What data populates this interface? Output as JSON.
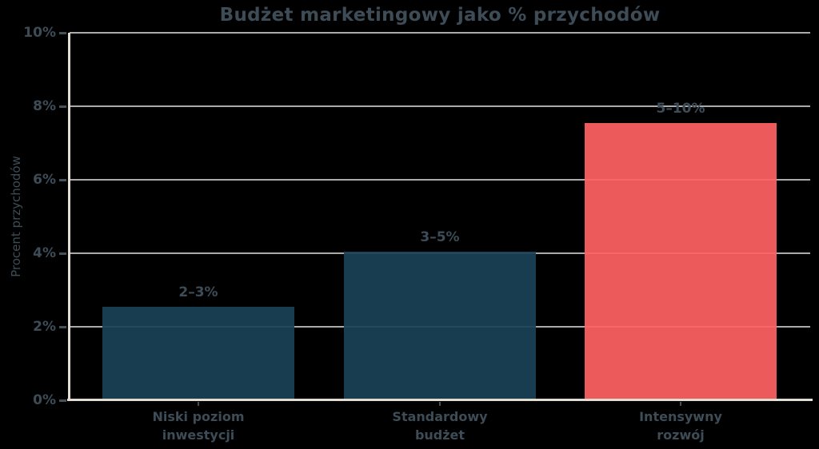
{
  "chart_data": {
    "type": "bar",
    "title": "Budżet marketingowy jako % przychodów",
    "ylabel": "Procent przychodów",
    "xlabel": "",
    "categories": [
      [
        "Niski poziom",
        "inwestycji"
      ],
      [
        "Standardowy",
        "budżet"
      ],
      [
        "Intensywny",
        "rozwój"
      ]
    ],
    "values": [
      2.5,
      4.0,
      7.5
    ],
    "bar_labels": [
      "2–3%",
      "3–5%",
      "5–10%"
    ],
    "bar_colors": [
      "#1a4156",
      "#1a4156",
      "#ff6163"
    ],
    "ytick_labels": [
      "0%",
      "2%",
      "4%",
      "6%",
      "8%",
      "10%"
    ],
    "ytick_values": [
      0,
      2,
      4,
      6,
      8,
      10
    ],
    "ylim": [
      0,
      10
    ],
    "grid": true,
    "legend": false,
    "colors": {
      "background": "#000000",
      "text": "#3d4c56",
      "axis_spine": "#e3dcd2",
      "gridline": "#ababab",
      "bar_standard": "#1a4156",
      "bar_highlight": "#ff6163"
    }
  }
}
